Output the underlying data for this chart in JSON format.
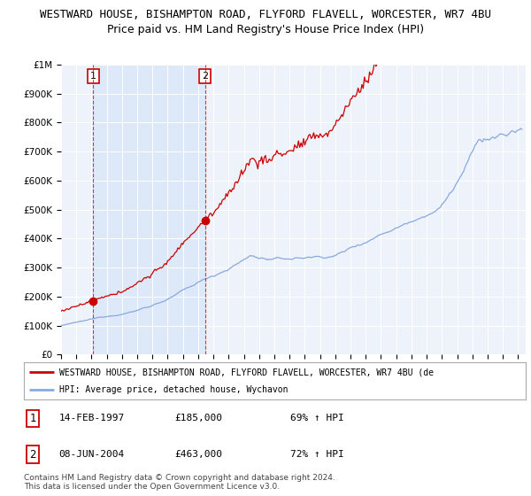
{
  "title": "WESTWARD HOUSE, BISHAMPTON ROAD, FLYFORD FLAVELL, WORCESTER, WR7 4BU",
  "subtitle": "Price paid vs. HM Land Registry's House Price Index (HPI)",
  "ylim": [
    0,
    1000000
  ],
  "yticks": [
    0,
    100000,
    200000,
    300000,
    400000,
    500000,
    600000,
    700000,
    800000,
    900000,
    1000000
  ],
  "ytick_labels": [
    "£0",
    "£100K",
    "£200K",
    "£300K",
    "£400K",
    "£500K",
    "£600K",
    "£700K",
    "£800K",
    "£900K",
    "£1M"
  ],
  "xlim_start": 1995.0,
  "xlim_end": 2025.5,
  "sale1_year": 1997.12,
  "sale1_price": 185000,
  "sale2_year": 2004.45,
  "sale2_price": 463000,
  "red_line_color": "#cc0000",
  "blue_line_color": "#88aadd",
  "dashed_line_color": "#cc0000",
  "shade_color": "#dde8f8",
  "background_plot": "#eef2fb",
  "background_fig": "#ffffff",
  "grid_color": "#ffffff",
  "legend_label_red": "WESTWARD HOUSE, BISHAMPTON ROAD, FLYFORD FLAVELL, WORCESTER, WR7 4BU (de",
  "legend_label_blue": "HPI: Average price, detached house, Wychavon",
  "table_rows": [
    {
      "num": "1",
      "date": "14-FEB-1997",
      "price": "£185,000",
      "hpi": "69% ↑ HPI"
    },
    {
      "num": "2",
      "date": "08-JUN-2004",
      "price": "£463,000",
      "hpi": "72% ↑ HPI"
    }
  ],
  "footnote": "Contains HM Land Registry data © Crown copyright and database right 2024.\nThis data is licensed under the Open Government Licence v3.0.",
  "title_fontsize": 9,
  "subtitle_fontsize": 9,
  "tick_fontsize": 7.5
}
